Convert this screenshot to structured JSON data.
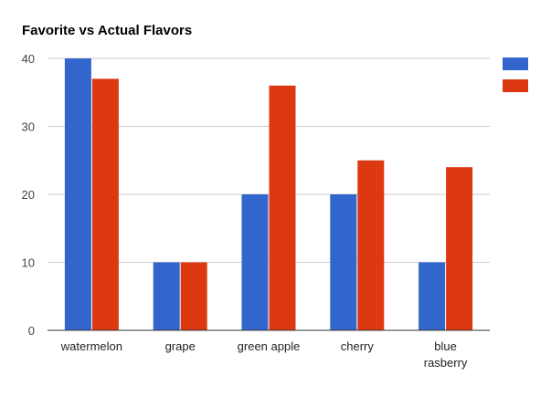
{
  "chart_data": {
    "type": "bar",
    "title": "Favorite vs Actual Flavors",
    "categories": [
      "watermelon",
      "grape",
      "green apple",
      "cherry",
      "blue rasberry"
    ],
    "category_lines": [
      [
        "watermelon"
      ],
      [
        "grape"
      ],
      [
        "green apple"
      ],
      [
        "cherry"
      ],
      [
        "blue",
        "rasberry"
      ]
    ],
    "series": [
      {
        "values": [
          40,
          10,
          20,
          20,
          10
        ],
        "color": "#3366cc"
      },
      {
        "values": [
          37,
          10,
          36,
          25,
          24
        ],
        "color": "#dc3912"
      }
    ],
    "ylim": [
      0,
      40
    ],
    "yticks": [
      0,
      10,
      20,
      30,
      40
    ],
    "xlabel": "",
    "ylabel": "",
    "grid": true,
    "legend_position": "right"
  }
}
